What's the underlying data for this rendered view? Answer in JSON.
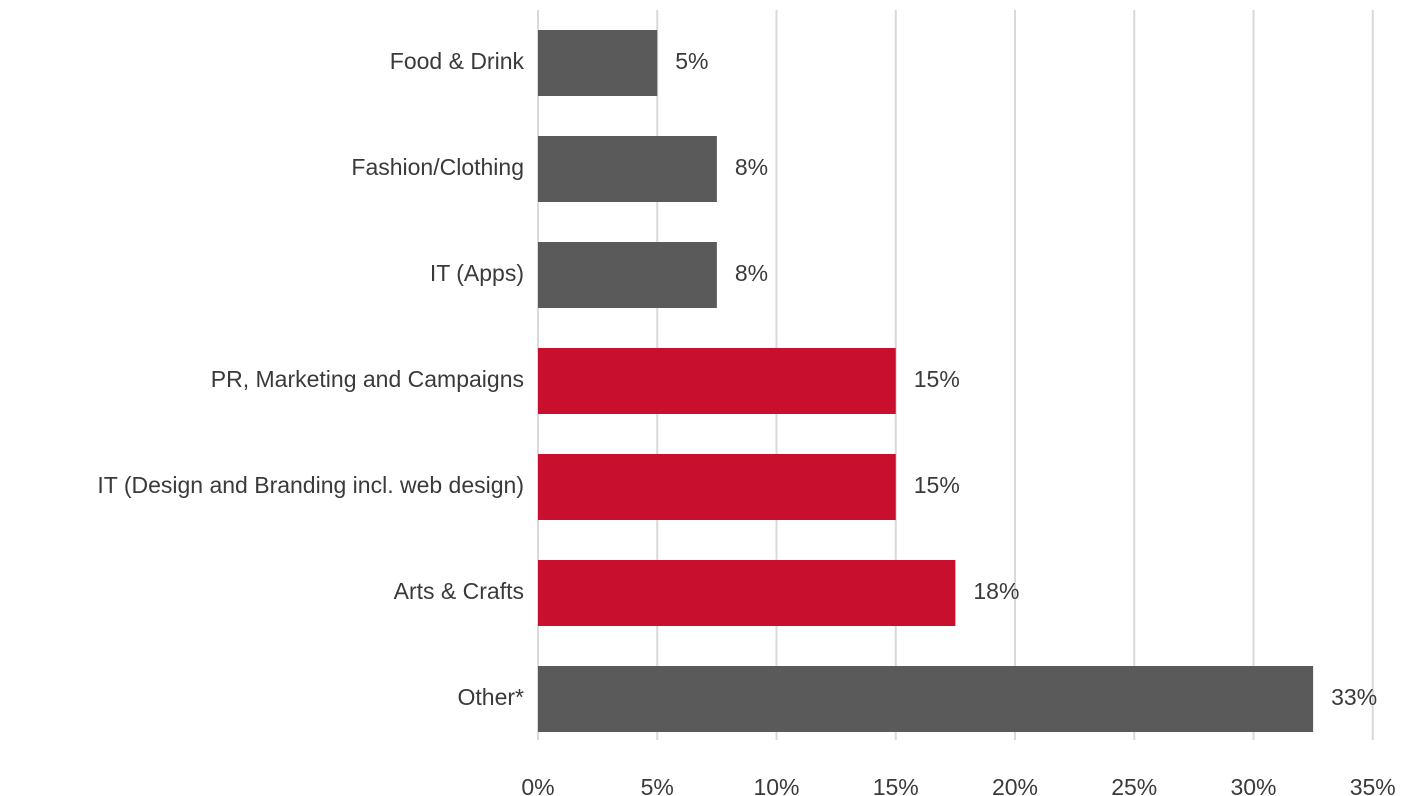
{
  "chart_data": {
    "type": "bar",
    "orientation": "horizontal",
    "title": "",
    "xlabel": "",
    "ylabel": "",
    "xlim": [
      0,
      35
    ],
    "x_ticks": [
      0,
      5,
      10,
      15,
      20,
      25,
      30,
      35
    ],
    "x_tick_labels": [
      "0%",
      "5%",
      "10%",
      "15%",
      "20%",
      "25%",
      "30%",
      "35%"
    ],
    "grid": "vertical",
    "legend": "none",
    "categories": [
      "Food & Drink",
      "Fashion/Clothing",
      "IT  (Apps)",
      "PR, Marketing and Campaigns",
      "IT (Design and Branding incl. web design)",
      "Arts & Crafts",
      "Other*"
    ],
    "values": [
      5,
      7.5,
      7.5,
      15,
      15,
      17.5,
      32.5
    ],
    "data_labels": [
      "5%",
      "8%",
      "8%",
      "15%",
      "15%",
      "18%",
      "33%"
    ],
    "bar_colors": [
      "#5a5a5a",
      "#5a5a5a",
      "#5a5a5a",
      "#c8102e",
      "#c8102e",
      "#c8102e",
      "#5a5a5a"
    ],
    "colors": {
      "gray": "#5a5a5a",
      "highlight": "#c8102e",
      "grid": "#d9d9d9",
      "text": "#3a3a3a"
    }
  }
}
